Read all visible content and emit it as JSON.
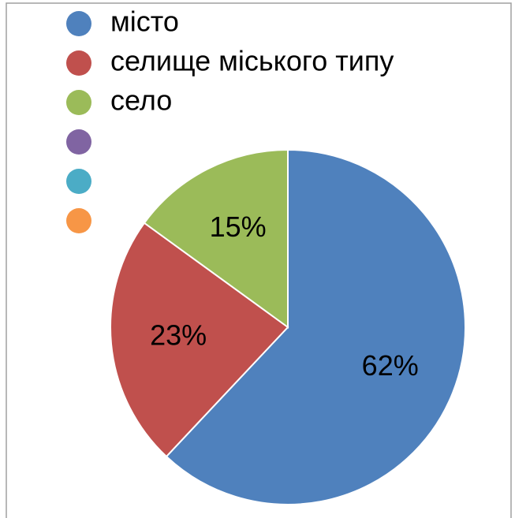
{
  "chart_data": {
    "type": "pie",
    "categories": [
      "місто",
      "селище міського типу",
      "село",
      null,
      null,
      null
    ],
    "values": [
      62,
      23,
      15,
      0,
      0,
      0
    ],
    "value_labels": [
      "62%",
      "23%",
      "15%",
      null,
      null,
      null
    ],
    "colors": [
      "#4f81bd",
      "#c0504d",
      "#9bbb59",
      "#8064a2",
      "#4bacc6",
      "#f79646"
    ]
  }
}
